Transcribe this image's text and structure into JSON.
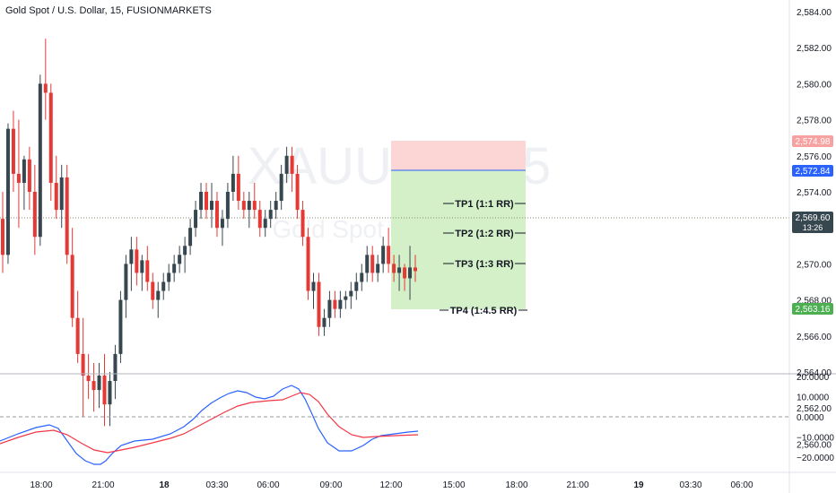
{
  "header": {
    "symbol_title": "Gold Spot / U.S. Dollar, 15, FUSIONMARKETS"
  },
  "watermark": {
    "symbol": "XAUUSD, 15",
    "description": "Gold Spot / U.S. Dollar"
  },
  "colors": {
    "up": "#26a69a",
    "down": "#ef5350",
    "candle_body_up": "#37474f",
    "candle_body_down": "#e53935",
    "stop_zone": "#fcd5d5",
    "target_zone": "#d4f0c8",
    "entry_line": "#2962ff",
    "macd_line": "#2962ff",
    "signal_line": "#f23645",
    "price_tag_dark": "#37474f",
    "tag_stop": "#f7a1a1",
    "tag_entry": "#2962ff",
    "tag_target": "#4caf50"
  },
  "price_axis": {
    "ticks": [
      "2,584.00",
      "2,582.00",
      "2,580.00",
      "2,578.00",
      "2,576.00",
      "2,574.00",
      "2,572.00",
      "2,570.00",
      "2,568.00",
      "2,566.00",
      "2,564.00",
      "2,562.00",
      "2,560.00"
    ],
    "tags": {
      "stop": "2,574.98",
      "entry": "2,572.84",
      "last": "2,569.60",
      "countdown": "13:26",
      "target": "2,563.16"
    }
  },
  "indicator_axis": {
    "ticks": [
      "20.0000",
      "10.0000",
      "0.0000",
      "−10.0000",
      "−20.0000"
    ]
  },
  "time_axis": {
    "ticks": [
      "18:00",
      "21:00",
      "18",
      "03:30",
      "06:00",
      "09:00",
      "12:00",
      "15:00",
      "18:00",
      "21:00",
      "19",
      "03:30",
      "06:00"
    ]
  },
  "position_tool": {
    "targets": [
      "TP1 (1:1 RR)",
      "TP2 (1:2 RR)",
      "TP3 (1:3 RR)",
      "TP4 (1:4.5 RR)"
    ]
  },
  "chart_data": {
    "type": "candlestick",
    "ylim": [
      2559,
      2585
    ],
    "candles": [
      [
        2572.5,
        2574.0,
        2569.5,
        2570.5
      ],
      [
        2570.5,
        2577.8,
        2570.0,
        2577.5
      ],
      [
        2577.5,
        2578.5,
        2574.0,
        2575.0
      ],
      [
        2575.0,
        2578.0,
        2572.0,
        2574.5
      ],
      [
        2574.5,
        2576.0,
        2573.0,
        2575.8
      ],
      [
        2575.8,
        2576.5,
        2573.0,
        2574.0
      ],
      [
        2574.0,
        2575.5,
        2570.5,
        2571.5
      ],
      [
        2571.5,
        2580.5,
        2571.0,
        2580.0
      ],
      [
        2580.0,
        2582.5,
        2578.0,
        2579.5
      ],
      [
        2579.5,
        2580.0,
        2573.5,
        2574.5
      ],
      [
        2574.5,
        2576.0,
        2572.5,
        2573.0
      ],
      [
        2573.0,
        2575.5,
        2572.0,
        2574.8
      ],
      [
        2574.8,
        2575.5,
        2570.0,
        2570.5
      ],
      [
        2570.5,
        2572.0,
        2566.5,
        2567.0
      ],
      [
        2567.0,
        2568.5,
        2564.5,
        2565.0
      ],
      [
        2565.0,
        2567.0,
        2561.5,
        2563.8
      ],
      [
        2563.8,
        2565.0,
        2562.5,
        2563.5
      ],
      [
        2563.5,
        2564.5,
        2561.8,
        2563.0
      ],
      [
        2563.0,
        2564.5,
        2562.0,
        2563.8
      ],
      [
        2563.8,
        2565.0,
        2561.0,
        2562.2
      ],
      [
        2562.2,
        2564.0,
        2561.0,
        2563.5
      ],
      [
        2563.5,
        2565.5,
        2562.5,
        2565.0
      ],
      [
        2565.0,
        2568.5,
        2564.5,
        2568.0
      ],
      [
        2568.0,
        2570.5,
        2567.0,
        2570.0
      ],
      [
        2570.0,
        2571.5,
        2568.5,
        2570.8
      ],
      [
        2570.8,
        2571.5,
        2568.8,
        2569.5
      ],
      [
        2569.5,
        2570.5,
        2568.5,
        2570.2
      ],
      [
        2570.2,
        2571.0,
        2568.5,
        2569.0
      ],
      [
        2569.0,
        2569.5,
        2567.5,
        2568.0
      ],
      [
        2568.0,
        2569.0,
        2567.0,
        2568.5
      ],
      [
        2568.5,
        2569.5,
        2568.0,
        2569.0
      ],
      [
        2569.0,
        2570.0,
        2568.5,
        2569.5
      ],
      [
        2569.5,
        2570.5,
        2569.0,
        2570.0
      ],
      [
        2570.0,
        2571.0,
        2569.5,
        2570.5
      ],
      [
        2570.5,
        2571.5,
        2569.5,
        2571.0
      ],
      [
        2571.0,
        2572.5,
        2570.5,
        2572.0
      ],
      [
        2572.0,
        2573.5,
        2571.5,
        2573.0
      ],
      [
        2573.0,
        2574.5,
        2572.5,
        2574.0
      ],
      [
        2574.0,
        2574.5,
        2572.5,
        2573.0
      ],
      [
        2573.0,
        2574.5,
        2572.0,
        2573.5
      ],
      [
        2573.5,
        2574.0,
        2571.5,
        2572.0
      ],
      [
        2572.0,
        2573.0,
        2571.0,
        2572.5
      ],
      [
        2572.5,
        2574.5,
        2572.0,
        2574.0
      ],
      [
        2574.0,
        2576.0,
        2573.5,
        2575.0
      ],
      [
        2575.0,
        2576.0,
        2573.0,
        2573.5
      ],
      [
        2573.5,
        2574.0,
        2572.5,
        2573.0
      ],
      [
        2573.0,
        2574.0,
        2572.0,
        2573.5
      ],
      [
        2573.5,
        2574.5,
        2572.5,
        2573.0
      ],
      [
        2573.0,
        2573.5,
        2571.5,
        2572.0
      ],
      [
        2572.0,
        2573.0,
        2571.5,
        2572.5
      ],
      [
        2572.5,
        2573.5,
        2572.0,
        2573.0
      ],
      [
        2573.0,
        2574.0,
        2572.5,
        2573.5
      ],
      [
        2573.5,
        2575.5,
        2573.0,
        2575.0
      ],
      [
        2575.0,
        2576.5,
        2574.5,
        2576.0
      ],
      [
        2576.0,
        2576.5,
        2574.0,
        2575.0
      ],
      [
        2575.0,
        2575.5,
        2572.5,
        2573.0
      ],
      [
        2573.0,
        2573.5,
        2571.0,
        2571.5
      ],
      [
        2571.5,
        2572.0,
        2568.0,
        2568.5
      ],
      [
        2568.5,
        2569.5,
        2567.5,
        2569.0
      ],
      [
        2569.0,
        2569.5,
        2566.0,
        2566.5
      ],
      [
        2566.5,
        2567.5,
        2566.0,
        2567.0
      ],
      [
        2567.0,
        2568.5,
        2566.5,
        2568.0
      ],
      [
        2568.0,
        2568.5,
        2567.0,
        2567.5
      ],
      [
        2567.5,
        2568.5,
        2567.0,
        2568.0
      ],
      [
        2568.0,
        2568.5,
        2567.5,
        2568.2
      ],
      [
        2568.2,
        2569.0,
        2567.5,
        2568.5
      ],
      [
        2568.5,
        2569.5,
        2568.0,
        2569.0
      ],
      [
        2569.0,
        2570.0,
        2568.5,
        2569.5
      ],
      [
        2569.5,
        2571.0,
        2569.0,
        2570.5
      ],
      [
        2570.5,
        2571.0,
        2569.0,
        2569.5
      ],
      [
        2569.5,
        2570.5,
        2569.0,
        2570.0
      ],
      [
        2570.0,
        2571.5,
        2569.5,
        2571.0
      ],
      [
        2571.0,
        2572.0,
        2569.5,
        2570.0
      ],
      [
        2570.0,
        2570.5,
        2569.0,
        2569.5
      ],
      [
        2569.5,
        2570.5,
        2568.5,
        2569.8
      ],
      [
        2569.8,
        2570.0,
        2568.5,
        2569.2
      ],
      [
        2569.2,
        2571.0,
        2568.0,
        2569.8
      ],
      [
        2569.8,
        2570.5,
        2569.0,
        2569.6
      ]
    ]
  }
}
